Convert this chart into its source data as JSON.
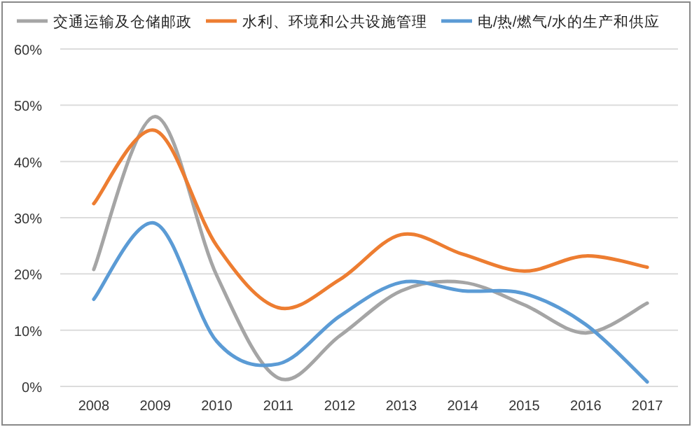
{
  "chart_data": {
    "type": "line",
    "categories": [
      "2008",
      "2009",
      "2010",
      "2011",
      "2012",
      "2013",
      "2014",
      "2015",
      "2016",
      "2017"
    ],
    "series": [
      {
        "name": "交通运输及仓储邮政",
        "color": "#a5a5a5",
        "values": [
          20.8,
          48,
          19.7,
          1.5,
          9,
          17,
          18.5,
          14.5,
          9.5,
          14.8
        ]
      },
      {
        "name": "水利、环境和公共设施管理",
        "color": "#ed7d31",
        "values": [
          32.5,
          45.5,
          25,
          14,
          19,
          27,
          23.5,
          20.5,
          23.2,
          21.2
        ]
      },
      {
        "name": "电/热/燃气/水的生产和供应",
        "color": "#5b9bd5",
        "values": [
          15.5,
          29,
          8,
          4,
          12.5,
          18.5,
          17,
          16.5,
          11,
          0.8
        ]
      }
    ],
    "ylim": [
      0,
      60
    ],
    "yticks": [
      {
        "value": 0,
        "label": "0%"
      },
      {
        "value": 10,
        "label": "10%"
      },
      {
        "value": 20,
        "label": "20%"
      },
      {
        "value": 30,
        "label": "30%"
      },
      {
        "value": 40,
        "label": "40%"
      },
      {
        "value": 50,
        "label": "50%"
      },
      {
        "value": 60,
        "label": "60%"
      }
    ],
    "grid": "y",
    "legend": "top",
    "marker": "none",
    "line_style": "solid"
  }
}
